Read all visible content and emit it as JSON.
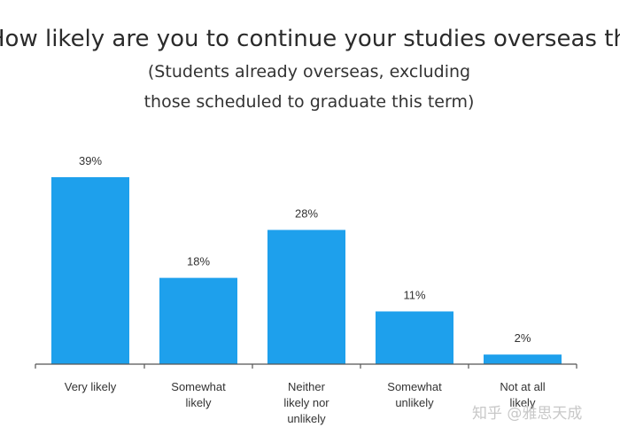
{
  "title": "How likely are you to continue your studies overseas this autumn?",
  "subtitle_line1": "(Students already overseas, excluding",
  "subtitle_line2": "those scheduled to graduate this term)",
  "watermark": "知乎 @雅思天成",
  "colors": {
    "bar": "#1ea0ec",
    "axis": "#555555",
    "text": "#333333"
  },
  "chart_data": {
    "type": "bar",
    "title": "How likely are you to continue your studies overseas this autumn?",
    "subtitle": "(Students already overseas, excluding those scheduled to graduate this term)",
    "categories": [
      [
        "Very likely"
      ],
      [
        "Somewhat",
        "likely"
      ],
      [
        "Neither",
        "likely nor",
        "unlikely"
      ],
      [
        "Somewhat",
        "unlikely"
      ],
      [
        "Not at all",
        "likely"
      ]
    ],
    "values": [
      39,
      18,
      28,
      11,
      2
    ],
    "value_labels": [
      "39%",
      "18%",
      "28%",
      "11%",
      "2%"
    ],
    "unit": "%",
    "ylim": [
      0,
      39
    ],
    "grid": false,
    "legend": "none"
  }
}
